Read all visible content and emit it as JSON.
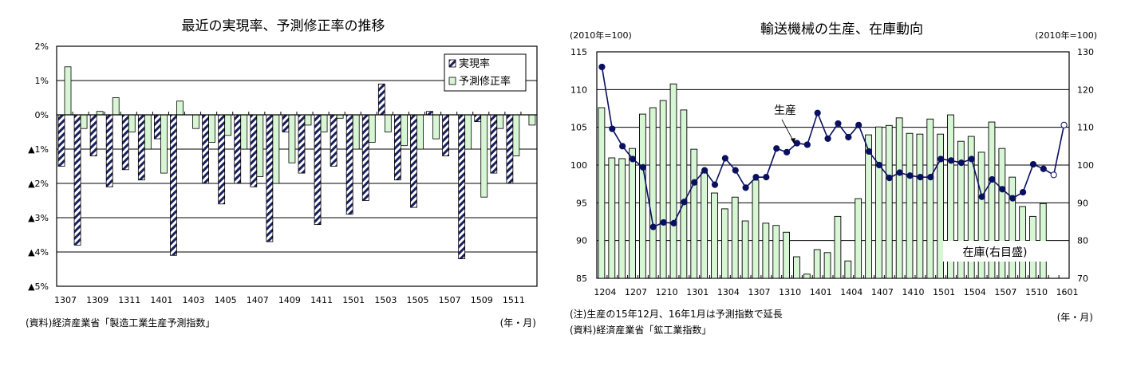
{
  "colors": {
    "green_fill": "#d7f7d4",
    "hatch_fg": "#1b1f5e",
    "line": "#0a1060",
    "grid": "#000000"
  },
  "left_chart": {
    "title": "最近の実現率、予測修正率の推移",
    "y_ticks": [
      "2%",
      "1%",
      "0%",
      "▲1%",
      "▲2%",
      "▲3%",
      "▲4%",
      "▲5%"
    ],
    "x_ticks": [
      "1307",
      "1309",
      "1311",
      "1401",
      "1403",
      "1405",
      "1407",
      "1409",
      "1411",
      "1501",
      "1503",
      "1505",
      "1507",
      "1509",
      "1511"
    ],
    "legend": [
      "実現率",
      "予測修正率"
    ],
    "source": "(資料)経済産業省「製造工業生産予測指数」",
    "unit": "(年・月)"
  },
  "right_chart": {
    "title": "輸送機械の生産、在庫動向",
    "left_unit": "(2010年=100)",
    "right_unit": "(2010年=100)",
    "y_left_ticks": [
      "115",
      "110",
      "105",
      "100",
      "95",
      "90",
      "85"
    ],
    "y_right_ticks": [
      "130",
      "120",
      "110",
      "100",
      "90",
      "80",
      "70"
    ],
    "x_ticks": [
      "1204",
      "1207",
      "1210",
      "1301",
      "1304",
      "1307",
      "1310",
      "1401",
      "1404",
      "1407",
      "1410",
      "1501",
      "1504",
      "1507",
      "1510",
      "1601"
    ],
    "label_production": "生産",
    "label_inventory": "在庫(右目盛)",
    "note": "(注)生産の15年12月、16年1月は予測指数で延長",
    "source": "(資料)経済産業省「鉱工業指数」",
    "unit": "(年・月)"
  },
  "chart_data": [
    {
      "type": "bar",
      "title": "最近の実現率、予測修正率の推移",
      "xlabel": "(年・月)",
      "ylabel": "%",
      "ylim": [
        -5,
        2
      ],
      "grid": true,
      "legend_position": "top-right",
      "categories": [
        "1307",
        "1308",
        "1309",
        "1310",
        "1311",
        "1312",
        "1401",
        "1402",
        "1403",
        "1404",
        "1405",
        "1406",
        "1407",
        "1408",
        "1409",
        "1410",
        "1411",
        "1412",
        "1501",
        "1502",
        "1503",
        "1504",
        "1505",
        "1506",
        "1507",
        "1508",
        "1509",
        "1510",
        "1511",
        "1512"
      ],
      "series": [
        {
          "name": "実現率",
          "style": "hatched",
          "values": [
            -1.5,
            -3.8,
            -1.2,
            -2.1,
            -1.6,
            -1.9,
            -0.7,
            -4.1,
            null,
            -2.0,
            -2.6,
            -2.0,
            -2.1,
            -3.7,
            -0.5,
            -1.7,
            -3.2,
            -1.5,
            -2.9,
            -2.5,
            0.9,
            -1.9,
            -2.7,
            0.1,
            -1.2,
            -4.2,
            -0.2,
            -1.7,
            -2.0,
            null
          ]
        },
        {
          "name": "予測修正率",
          "style": "green",
          "values": [
            1.4,
            -0.4,
            0.1,
            0.5,
            -0.5,
            -1.0,
            -1.7,
            0.4,
            -0.4,
            -0.8,
            -0.6,
            -1.0,
            -1.8,
            -2.0,
            -1.4,
            -0.3,
            -0.5,
            -0.1,
            -1.0,
            -0.8,
            -0.5,
            -0.9,
            -1.0,
            -0.7,
            null,
            -1.0,
            -2.4,
            -0.4,
            -1.2,
            -0.3
          ]
        }
      ]
    },
    {
      "type": "bar+line",
      "title": "輸送機械の生産、在庫動向",
      "xlabel": "(年・月)",
      "ylabel_left": "(2010年=100)",
      "ylabel_right": "(2010年=100)",
      "ylim_left": [
        85,
        115
      ],
      "ylim_right": [
        70,
        130
      ],
      "grid": true,
      "categories": [
        "1204",
        "1205",
        "1206",
        "1207",
        "1208",
        "1209",
        "1210",
        "1211",
        "1212",
        "1301",
        "1302",
        "1303",
        "1304",
        "1305",
        "1306",
        "1307",
        "1308",
        "1309",
        "1310",
        "1311",
        "1312",
        "1401",
        "1402",
        "1403",
        "1404",
        "1405",
        "1406",
        "1407",
        "1408",
        "1409",
        "1410",
        "1411",
        "1412",
        "1501",
        "1502",
        "1503",
        "1504",
        "1505",
        "1506",
        "1507",
        "1508",
        "1509",
        "1510",
        "1511",
        "1512",
        "1601"
      ],
      "series": [
        {
          "name": "生産",
          "type": "line",
          "axis": "left",
          "values": [
            113.0,
            104.8,
            102.5,
            100.8,
            99.7,
            91.8,
            92.4,
            92.3,
            95.1,
            97.7,
            99.3,
            97.4,
            100.9,
            99.3,
            97.0,
            98.4,
            98.4,
            102.2,
            101.7,
            102.9,
            102.7,
            106.9,
            103.5,
            105.5,
            103.7,
            105.3,
            101.8,
            100.0,
            98.3,
            99.0,
            98.6,
            98.4,
            98.4,
            100.8,
            100.6,
            100.3,
            100.8,
            95.8,
            98.1,
            96.8,
            95.6,
            96.4,
            100.1,
            99.5,
            98.7,
            105.3
          ],
          "forecast_points": [
            "1512",
            "1601"
          ]
        },
        {
          "name": "在庫(右目盛)",
          "type": "bar",
          "axis": "right",
          "values": [
            115.2,
            101.9,
            101.7,
            104.4,
            113.5,
            115.2,
            117.1,
            121.5,
            114.6,
            104.2,
            98.1,
            92.6,
            88.4,
            91.5,
            85.2,
            96.0,
            84.6,
            84.0,
            82.2,
            75.7,
            71.1,
            77.6,
            76.8,
            86.4,
            74.6,
            91.1,
            108.0,
            110.1,
            110.5,
            112.5,
            108.4,
            108.2,
            112.2,
            108.2,
            113.3,
            106.3,
            107.6,
            103.4,
            111.4,
            104.4,
            96.8,
            89.0,
            86.4,
            89.8,
            null,
            null
          ]
        }
      ],
      "annotations": [
        "(注)生産の15年12月、16年1月は予測指数で延長",
        "(資料)経済産業省「鉱工業指数」"
      ]
    }
  ]
}
